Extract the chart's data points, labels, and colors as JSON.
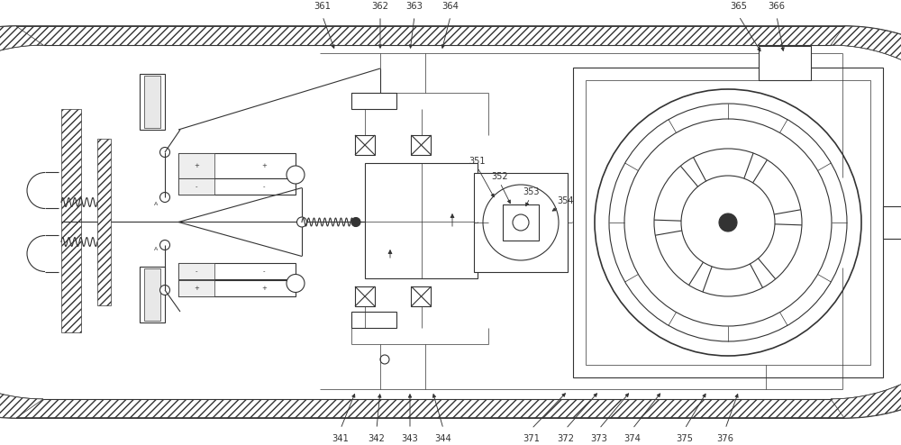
{
  "bg_color": "#ffffff",
  "line_color": "#333333",
  "label_color": "#222222",
  "figsize": [
    10.0,
    4.94
  ],
  "dpi": 100,
  "lw_main": 0.8,
  "lw_thin": 0.5,
  "lw_thick": 1.2
}
